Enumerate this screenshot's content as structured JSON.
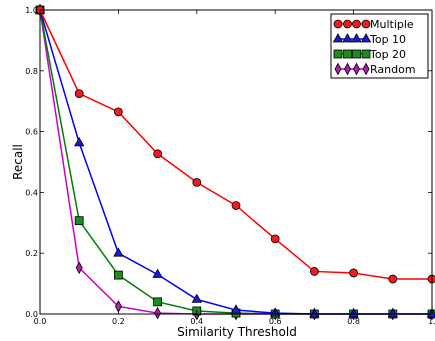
{
  "chart_data": {
    "type": "line",
    "xlabel": "Similarity Threshold",
    "ylabel": "Recall",
    "xlim": [
      0.0,
      1.0
    ],
    "ylim": [
      0.0,
      1.0
    ],
    "x_ticks": [
      0.0,
      0.2,
      0.4,
      0.6,
      0.8,
      1.0
    ],
    "y_ticks": [
      0.0,
      0.2,
      0.4,
      0.6,
      0.8,
      1.0
    ],
    "x_tick_labels": [
      "0.0",
      "0.2",
      "0.4",
      "0.6",
      "0.8",
      "1."
    ],
    "y_tick_labels": [
      "0.0",
      "0.2",
      "0.4",
      "0.6",
      "0.8",
      "1.0"
    ],
    "grid": false,
    "legend_position": "top-right",
    "x": [
      0.0,
      0.1,
      0.2,
      0.3,
      0.4,
      0.5,
      0.6,
      0.7,
      0.8,
      0.9,
      1.0
    ],
    "series": [
      {
        "name": "Multiple",
        "color": "#ff0000",
        "marker_color": "#ee1c1c",
        "marker": "circle",
        "values": [
          1.0,
          0.725,
          0.665,
          0.527,
          0.433,
          0.357,
          0.247,
          0.14,
          0.135,
          0.115,
          0.115
        ]
      },
      {
        "name": "Top 10",
        "color": "#0000ff",
        "marker_color": "#1a1adc",
        "marker": "triangle",
        "values": [
          1.0,
          0.563,
          0.2,
          0.13,
          0.048,
          0.013,
          0.003,
          0.0,
          0.0,
          0.0,
          0.0
        ]
      },
      {
        "name": "Top 20",
        "color": "#008000",
        "marker_color": "#1c8c1c",
        "marker": "square",
        "values": [
          1.0,
          0.307,
          0.128,
          0.04,
          0.01,
          0.003,
          0.0,
          0.0,
          0.0,
          0.0,
          0.0
        ]
      },
      {
        "name": "Random",
        "color": "#cc00cc",
        "marker_color": "#b01cb0",
        "marker": "diamond",
        "values": [
          1.0,
          0.152,
          0.025,
          0.003,
          0.0,
          0.0,
          0.0,
          0.0,
          0.0,
          0.0,
          0.0
        ]
      }
    ]
  }
}
